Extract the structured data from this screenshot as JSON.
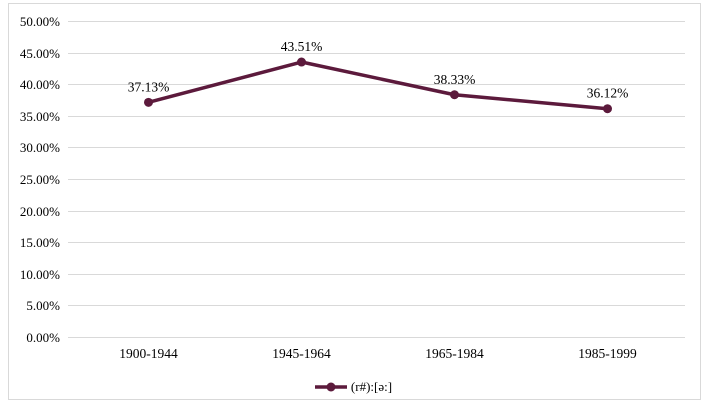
{
  "chart_data": {
    "type": "line",
    "title": "",
    "xlabel": "",
    "ylabel": "",
    "categories": [
      "1900-1944",
      "1945-1964",
      "1965-1984",
      "1985-1999"
    ],
    "series": [
      {
        "name": "(r#):[ə:]",
        "values": [
          37.13,
          43.51,
          38.33,
          36.12
        ],
        "data_labels": [
          "37.13%",
          "43.51%",
          "38.33%",
          "36.12%"
        ],
        "color": "#5C1A3C"
      }
    ],
    "y_ticks": [
      "0.00%",
      "5.00%",
      "10.00%",
      "15.00%",
      "20.00%",
      "25.00%",
      "30.00%",
      "35.00%",
      "40.00%",
      "45.00%",
      "50.00%"
    ],
    "ylim": [
      0,
      50
    ],
    "y_tick_step": 5,
    "grid": true,
    "legend_position": "bottom",
    "colors": {
      "gridline": "#D9D9D9",
      "chart_border": "#D9D9D9",
      "text": "#000000"
    }
  }
}
